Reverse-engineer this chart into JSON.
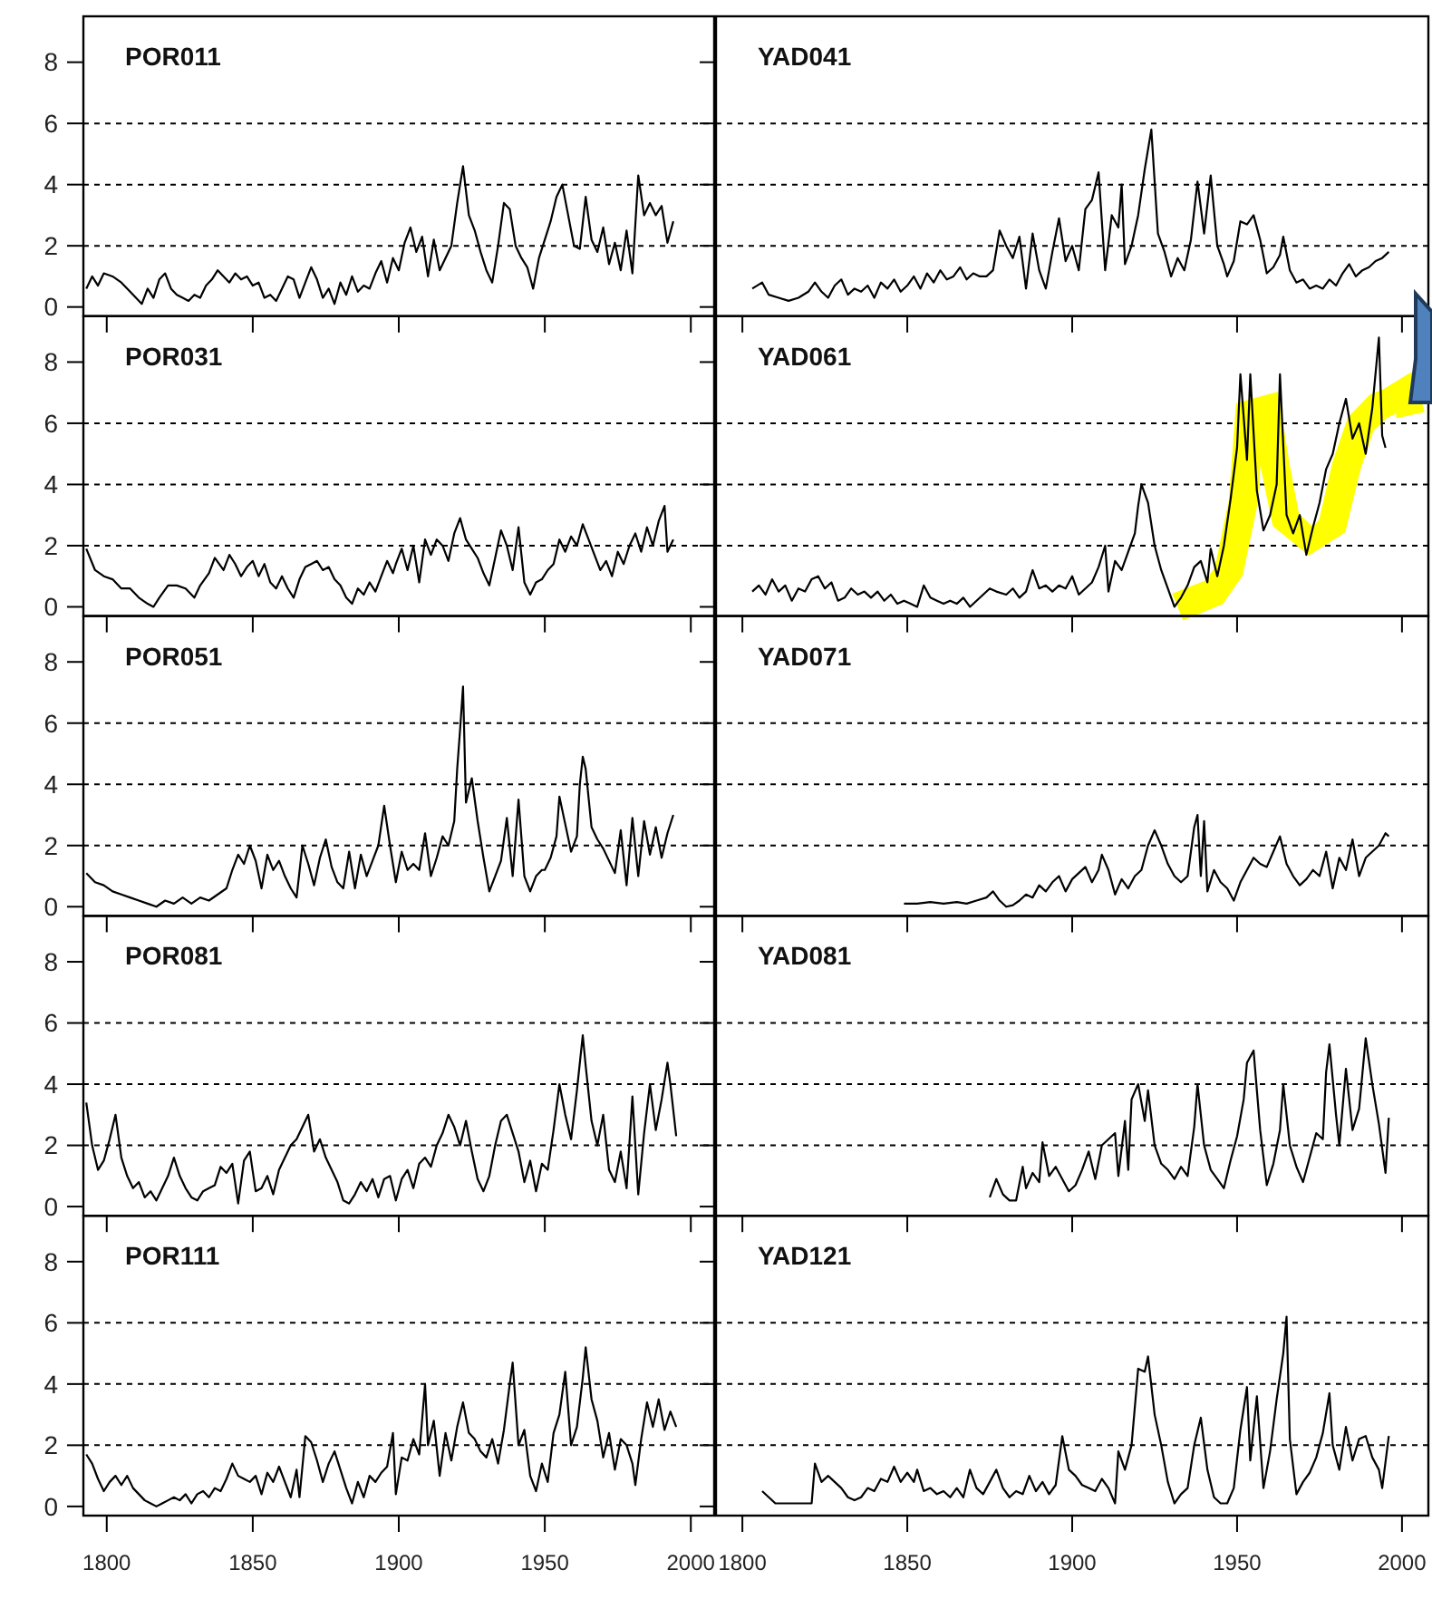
{
  "chart_data": [
    {
      "type": "line",
      "title": "POR011",
      "color": "#000000",
      "xlim": [
        1792,
        2008
      ],
      "xticks": [
        1800,
        1850,
        1900,
        1950,
        2000
      ],
      "ylim": [
        -0.3,
        9.5
      ],
      "yticks": [
        0,
        2,
        4,
        6,
        8
      ],
      "tick_labels": "y",
      "ref_lines": [
        {
          "axis": "y",
          "value": 2,
          "line_style": "dashed"
        },
        {
          "axis": "y",
          "value": 4,
          "line_style": "dashed"
        },
        {
          "axis": "y",
          "value": 6,
          "line_style": "dashed"
        }
      ],
      "x": [
        1793,
        1795,
        1797,
        1799,
        1802,
        1805,
        1808,
        1810,
        1812,
        1814,
        1816,
        1818,
        1820,
        1822,
        1824,
        1826,
        1828,
        1830,
        1832,
        1834,
        1836,
        1838,
        1840,
        1842,
        1844,
        1846,
        1848,
        1850,
        1852,
        1854,
        1856,
        1858,
        1860,
        1862,
        1864,
        1866,
        1868,
        1870,
        1872,
        1874,
        1876,
        1878,
        1880,
        1882,
        1884,
        1886,
        1888,
        1890,
        1892,
        1894,
        1896,
        1898,
        1900,
        1902,
        1904,
        1906,
        1908,
        1910,
        1912,
        1914,
        1916,
        1918,
        1920,
        1922,
        1924,
        1926,
        1928,
        1930,
        1932,
        1934,
        1936,
        1938,
        1940,
        1942,
        1944,
        1946,
        1948,
        1950,
        1952,
        1954,
        1956,
        1958,
        1960,
        1962,
        1964,
        1966,
        1968,
        1970,
        1972,
        1974,
        1976,
        1978,
        1980,
        1982,
        1984,
        1986,
        1988,
        1990,
        1992,
        1994
      ],
      "values": [
        0.6,
        1.0,
        0.7,
        1.1,
        1.0,
        0.8,
        0.5,
        0.3,
        0.1,
        0.6,
        0.3,
        0.9,
        1.1,
        0.6,
        0.4,
        0.3,
        0.2,
        0.4,
        0.3,
        0.7,
        0.9,
        1.2,
        1.0,
        0.8,
        1.1,
        0.9,
        1.0,
        0.7,
        0.8,
        0.3,
        0.4,
        0.2,
        0.6,
        1.0,
        0.9,
        0.3,
        0.8,
        1.3,
        0.9,
        0.3,
        0.6,
        0.1,
        0.8,
        0.4,
        1.0,
        0.5,
        0.7,
        0.6,
        1.1,
        1.5,
        0.8,
        1.6,
        1.2,
        2.1,
        2.6,
        1.8,
        2.3,
        1.0,
        2.2,
        1.2,
        1.6,
        2.0,
        3.4,
        4.6,
        3.0,
        2.5,
        1.8,
        1.2,
        0.8,
        2.0,
        3.4,
        3.2,
        2.0,
        1.6,
        1.3,
        0.6,
        1.6,
        2.2,
        2.8,
        3.6,
        4.0,
        3.0,
        2.0,
        1.9,
        3.6,
        2.2,
        1.8,
        2.6,
        1.4,
        2.1,
        1.2,
        2.5,
        1.1,
        4.3,
        3.0,
        3.4,
        3.0,
        3.3,
        2.1,
        2.8
      ]
    },
    {
      "type": "line",
      "title": "YAD041",
      "color": "#000000",
      "xlim": [
        1792,
        2008
      ],
      "xticks": [
        1800,
        1850,
        1900,
        1950,
        2000
      ],
      "ylim": [
        -0.3,
        9.5
      ],
      "yticks": [
        0,
        2,
        4,
        6,
        8
      ],
      "tick_labels": false,
      "ref_lines": [
        {
          "axis": "y",
          "value": 2,
          "line_style": "dashed"
        },
        {
          "axis": "y",
          "value": 4,
          "line_style": "dashed"
        },
        {
          "axis": "y",
          "value": 6,
          "line_style": "dashed"
        }
      ],
      "x": [
        1803,
        1806,
        1808,
        1811,
        1814,
        1817,
        1820,
        1822,
        1824,
        1826,
        1828,
        1830,
        1832,
        1834,
        1836,
        1838,
        1840,
        1842,
        1844,
        1846,
        1848,
        1850,
        1852,
        1854,
        1856,
        1858,
        1860,
        1862,
        1864,
        1866,
        1868,
        1870,
        1872,
        1874,
        1876,
        1878,
        1880,
        1882,
        1884,
        1886,
        1888,
        1890,
        1892,
        1894,
        1896,
        1898,
        1900,
        1902,
        1904,
        1906,
        1908,
        1910,
        1912,
        1914,
        1915,
        1916,
        1918,
        1920,
        1922,
        1924,
        1926,
        1928,
        1930,
        1932,
        1934,
        1936,
        1938,
        1940,
        1942,
        1944,
        1946,
        1947,
        1949,
        1951,
        1953,
        1955,
        1957,
        1959,
        1961,
        1963,
        1964,
        1966,
        1968,
        1970,
        1972,
        1974,
        1976,
        1978,
        1980,
        1982,
        1984,
        1986,
        1988,
        1990,
        1992,
        1994,
        1996
      ],
      "values": [
        0.6,
        0.8,
        0.4,
        0.3,
        0.2,
        0.3,
        0.5,
        0.8,
        0.5,
        0.3,
        0.7,
        0.9,
        0.4,
        0.6,
        0.5,
        0.7,
        0.3,
        0.8,
        0.6,
        0.9,
        0.5,
        0.7,
        1.0,
        0.6,
        1.1,
        0.8,
        1.2,
        0.9,
        1.0,
        1.3,
        0.9,
        1.1,
        1.0,
        1.0,
        1.2,
        2.5,
        2.0,
        1.6,
        2.3,
        0.6,
        2.4,
        1.2,
        0.6,
        1.8,
        2.9,
        1.5,
        2.0,
        1.2,
        3.2,
        3.5,
        4.4,
        1.2,
        3.0,
        2.6,
        4.0,
        1.4,
        2.0,
        3.0,
        4.5,
        5.8,
        2.4,
        1.8,
        1.0,
        1.6,
        1.2,
        2.2,
        4.1,
        2.4,
        4.3,
        2.0,
        1.4,
        1.0,
        1.5,
        2.8,
        2.7,
        3.0,
        2.2,
        1.1,
        1.3,
        1.7,
        2.3,
        1.2,
        0.8,
        0.9,
        0.6,
        0.7,
        0.6,
        0.9,
        0.7,
        1.1,
        1.4,
        1.0,
        1.2,
        1.3,
        1.5,
        1.6,
        1.8
      ]
    },
    {
      "type": "line",
      "title": "POR031",
      "color": "#000000",
      "xlim": [
        1792,
        2008
      ],
      "xticks": [
        1800,
        1850,
        1900,
        1950,
        2000
      ],
      "ylim": [
        -0.3,
        9.5
      ],
      "yticks": [
        0,
        2,
        4,
        6,
        8
      ],
      "tick_labels": "y",
      "ref_lines": [
        {
          "axis": "y",
          "value": 2,
          "line_style": "dashed"
        },
        {
          "axis": "y",
          "value": 4,
          "line_style": "dashed"
        },
        {
          "axis": "y",
          "value": 6,
          "line_style": "dashed"
        }
      ],
      "x": [
        1793,
        1796,
        1799,
        1802,
        1805,
        1808,
        1811,
        1814,
        1816,
        1818,
        1821,
        1824,
        1827,
        1830,
        1832,
        1835,
        1837,
        1840,
        1842,
        1844,
        1846,
        1848,
        1850,
        1852,
        1854,
        1856,
        1858,
        1860,
        1862,
        1864,
        1866,
        1868,
        1870,
        1872,
        1874,
        1876,
        1878,
        1880,
        1882,
        1884,
        1886,
        1888,
        1890,
        1892,
        1894,
        1896,
        1898,
        1899,
        1901,
        1903,
        1905,
        1907,
        1909,
        1911,
        1913,
        1915,
        1917,
        1919,
        1921,
        1923,
        1925,
        1927,
        1929,
        1931,
        1933,
        1935,
        1937,
        1939,
        1941,
        1943,
        1945,
        1947,
        1949,
        1951,
        1953,
        1955,
        1957,
        1959,
        1961,
        1963,
        1965,
        1967,
        1969,
        1971,
        1973,
        1975,
        1977,
        1979,
        1981,
        1983,
        1985,
        1987,
        1989,
        1991,
        1992,
        1994
      ],
      "values": [
        1.9,
        1.2,
        1.0,
        0.9,
        0.6,
        0.6,
        0.3,
        0.1,
        0.0,
        0.3,
        0.7,
        0.7,
        0.6,
        0.3,
        0.7,
        1.1,
        1.6,
        1.2,
        1.7,
        1.4,
        1.0,
        1.3,
        1.5,
        1.0,
        1.4,
        0.8,
        0.6,
        1.0,
        0.6,
        0.3,
        0.9,
        1.3,
        1.4,
        1.5,
        1.2,
        1.3,
        0.9,
        0.7,
        0.3,
        0.1,
        0.6,
        0.4,
        0.8,
        0.5,
        1.0,
        1.5,
        1.1,
        1.4,
        1.9,
        1.2,
        2.0,
        0.8,
        2.2,
        1.7,
        2.2,
        2.0,
        1.5,
        2.4,
        2.9,
        2.2,
        1.9,
        1.6,
        1.1,
        0.7,
        1.6,
        2.5,
        2.0,
        1.2,
        2.6,
        0.8,
        0.4,
        0.8,
        0.9,
        1.2,
        1.4,
        2.2,
        1.8,
        2.3,
        2.0,
        2.7,
        2.2,
        1.7,
        1.2,
        1.5,
        1.0,
        1.8,
        1.4,
        2.0,
        2.4,
        1.8,
        2.6,
        2.0,
        2.8,
        3.3,
        1.8,
        2.2
      ]
    },
    {
      "type": "line",
      "title": "YAD061",
      "color": "#000000",
      "xlim": [
        1792,
        2008
      ],
      "xticks": [
        1800,
        1850,
        1900,
        1950,
        2000
      ],
      "ylim": [
        -0.3,
        9.5
      ],
      "yticks": [
        0,
        2,
        4,
        6,
        8
      ],
      "tick_labels": false,
      "ref_lines": [
        {
          "axis": "y",
          "value": 2,
          "line_style": "dashed"
        },
        {
          "axis": "y",
          "value": 4,
          "line_style": "dashed"
        },
        {
          "axis": "y",
          "value": 6,
          "line_style": "dashed"
        }
      ],
      "x": [
        1803,
        1805,
        1807,
        1809,
        1811,
        1813,
        1815,
        1817,
        1819,
        1821,
        1823,
        1825,
        1827,
        1829,
        1831,
        1833,
        1835,
        1837,
        1839,
        1841,
        1843,
        1845,
        1847,
        1849,
        1851,
        1853,
        1855,
        1857,
        1859,
        1861,
        1863,
        1865,
        1867,
        1869,
        1871,
        1873,
        1875,
        1877,
        1880,
        1882,
        1884,
        1886,
        1888,
        1890,
        1892,
        1894,
        1896,
        1898,
        1900,
        1902,
        1904,
        1906,
        1908,
        1910,
        1911,
        1913,
        1915,
        1917,
        1919,
        1920,
        1921,
        1923,
        1925,
        1927,
        1929,
        1931,
        1933,
        1935,
        1937,
        1939,
        1941,
        1942,
        1944,
        1946,
        1948,
        1950,
        1951,
        1953,
        1954,
        1956,
        1958,
        1960,
        1962,
        1963,
        1965,
        1967,
        1969,
        1971,
        1973,
        1975,
        1977,
        1979,
        1981,
        1983,
        1985,
        1987,
        1989,
        1991,
        1993,
        1994,
        1995
      ],
      "values": [
        0.5,
        0.7,
        0.4,
        0.9,
        0.5,
        0.7,
        0.2,
        0.6,
        0.5,
        0.9,
        1.0,
        0.6,
        0.8,
        0.2,
        0.3,
        0.6,
        0.4,
        0.5,
        0.3,
        0.5,
        0.2,
        0.4,
        0.1,
        0.2,
        0.1,
        0.0,
        0.7,
        0.3,
        0.2,
        0.1,
        0.2,
        0.1,
        0.3,
        0.0,
        0.2,
        0.4,
        0.6,
        0.5,
        0.4,
        0.6,
        0.3,
        0.5,
        1.2,
        0.6,
        0.7,
        0.5,
        0.7,
        0.6,
        1.0,
        0.4,
        0.6,
        0.8,
        1.3,
        2.0,
        0.5,
        1.5,
        1.2,
        1.8,
        2.4,
        3.3,
        4.0,
        3.4,
        2.0,
        1.2,
        0.6,
        0.0,
        0.3,
        0.7,
        1.3,
        1.5,
        0.8,
        1.9,
        1.0,
        2.0,
        3.5,
        5.2,
        7.6,
        4.8,
        7.6,
        3.8,
        2.5,
        3.0,
        4.0,
        7.6,
        3.0,
        2.4,
        3.0,
        1.7,
        2.6,
        3.4,
        4.5,
        5.0,
        6.0,
        6.8,
        5.5,
        6.0,
        5.0,
        6.5,
        8.8,
        5.6,
        5.2
      ]
    },
    {
      "type": "line",
      "title": "POR051",
      "color": "#000000",
      "xlim": [
        1792,
        2008
      ],
      "xticks": [
        1800,
        1850,
        1900,
        1950,
        2000
      ],
      "ylim": [
        -0.3,
        9.5
      ],
      "yticks": [
        0,
        2,
        4,
        6,
        8
      ],
      "tick_labels": "y",
      "ref_lines": [
        {
          "axis": "y",
          "value": 2,
          "line_style": "dashed"
        },
        {
          "axis": "y",
          "value": 4,
          "line_style": "dashed"
        },
        {
          "axis": "y",
          "value": 6,
          "line_style": "dashed"
        }
      ],
      "x": [
        1793,
        1796,
        1799,
        1802,
        1805,
        1808,
        1811,
        1814,
        1817,
        1820,
        1823,
        1826,
        1829,
        1832,
        1835,
        1838,
        1841,
        1843,
        1845,
        1847,
        1849,
        1851,
        1853,
        1855,
        1857,
        1859,
        1861,
        1863,
        1865,
        1867,
        1869,
        1871,
        1873,
        1875,
        1877,
        1879,
        1881,
        1883,
        1885,
        1887,
        1889,
        1891,
        1893,
        1895,
        1897,
        1899,
        1901,
        1903,
        1905,
        1907,
        1909,
        1911,
        1913,
        1915,
        1917,
        1919,
        1920,
        1921,
        1922,
        1923,
        1925,
        1927,
        1929,
        1931,
        1933,
        1935,
        1937,
        1939,
        1941,
        1943,
        1945,
        1947,
        1949,
        1950,
        1952,
        1954,
        1955,
        1957,
        1959,
        1961,
        1962,
        1963,
        1964,
        1966,
        1968,
        1970,
        1972,
        1974,
        1976,
        1978,
        1980,
        1982,
        1984,
        1986,
        1988,
        1990,
        1992,
        1994
      ],
      "values": [
        1.1,
        0.8,
        0.7,
        0.5,
        0.4,
        0.3,
        0.2,
        0.1,
        0.0,
        0.2,
        0.1,
        0.3,
        0.1,
        0.3,
        0.2,
        0.4,
        0.6,
        1.2,
        1.7,
        1.4,
        2.0,
        1.5,
        0.6,
        1.7,
        1.2,
        1.5,
        1.0,
        0.6,
        0.3,
        2.0,
        1.4,
        0.7,
        1.6,
        2.2,
        1.3,
        0.8,
        0.6,
        1.8,
        0.6,
        1.7,
        1.0,
        1.5,
        2.0,
        3.3,
        2.0,
        0.8,
        1.8,
        1.2,
        1.4,
        1.2,
        2.4,
        1.0,
        1.6,
        2.3,
        2.0,
        2.8,
        4.5,
        5.8,
        7.2,
        3.4,
        4.2,
        2.8,
        1.6,
        0.5,
        1.0,
        1.5,
        2.9,
        1.0,
        3.5,
        1.0,
        0.5,
        1.0,
        1.2,
        1.2,
        1.6,
        2.3,
        3.6,
        2.7,
        1.8,
        2.3,
        4.0,
        4.9,
        4.5,
        2.6,
        2.2,
        1.9,
        1.5,
        1.1,
        2.5,
        0.7,
        2.9,
        1.0,
        2.8,
        1.7,
        2.6,
        1.6,
        2.4,
        3.0
      ]
    },
    {
      "type": "line",
      "title": "YAD071",
      "color": "#000000",
      "xlim": [
        1792,
        2008
      ],
      "xticks": [
        1800,
        1850,
        1900,
        1950,
        2000
      ],
      "ylim": [
        -0.3,
        9.5
      ],
      "yticks": [
        0,
        2,
        4,
        6,
        8
      ],
      "tick_labels": false,
      "ref_lines": [
        {
          "axis": "y",
          "value": 2,
          "line_style": "dashed"
        },
        {
          "axis": "y",
          "value": 4,
          "line_style": "dashed"
        },
        {
          "axis": "y",
          "value": 6,
          "line_style": "dashed"
        }
      ],
      "x": [
        1849,
        1853,
        1857,
        1861,
        1865,
        1868,
        1871,
        1874,
        1876,
        1878,
        1880,
        1882,
        1884,
        1886,
        1888,
        1890,
        1892,
        1894,
        1896,
        1898,
        1900,
        1902,
        1904,
        1906,
        1908,
        1909,
        1911,
        1913,
        1915,
        1917,
        1919,
        1921,
        1923,
        1925,
        1927,
        1929,
        1931,
        1933,
        1935,
        1937,
        1938,
        1939,
        1940,
        1941,
        1943,
        1945,
        1947,
        1949,
        1951,
        1953,
        1955,
        1957,
        1959,
        1961,
        1963,
        1965,
        1967,
        1969,
        1971,
        1973,
        1975,
        1977,
        1979,
        1981,
        1983,
        1985,
        1987,
        1989,
        1991,
        1993,
        1995,
        1996
      ],
      "values": [
        0.1,
        0.1,
        0.15,
        0.1,
        0.15,
        0.1,
        0.2,
        0.3,
        0.5,
        0.2,
        0.0,
        0.05,
        0.2,
        0.4,
        0.3,
        0.7,
        0.5,
        0.8,
        1.0,
        0.5,
        0.9,
        1.1,
        1.3,
        0.8,
        1.2,
        1.7,
        1.2,
        0.4,
        0.9,
        0.6,
        1.0,
        1.2,
        2.0,
        2.5,
        2.0,
        1.4,
        1.0,
        0.8,
        1.0,
        2.6,
        3.0,
        1.0,
        2.8,
        0.5,
        1.2,
        0.8,
        0.6,
        0.2,
        0.8,
        1.2,
        1.6,
        1.4,
        1.3,
        1.8,
        2.3,
        1.4,
        1.0,
        0.7,
        0.9,
        1.2,
        1.0,
        1.8,
        0.6,
        1.6,
        1.2,
        2.2,
        1.0,
        1.6,
        1.8,
        2.0,
        2.4,
        2.3
      ]
    },
    {
      "type": "line",
      "title": "POR081",
      "color": "#000000",
      "xlim": [
        1792,
        2008
      ],
      "xticks": [
        1800,
        1850,
        1900,
        1950,
        2000
      ],
      "ylim": [
        -0.3,
        9.5
      ],
      "yticks": [
        0,
        2,
        4,
        6,
        8
      ],
      "tick_labels": "y",
      "ref_lines": [
        {
          "axis": "y",
          "value": 2,
          "line_style": "dashed"
        },
        {
          "axis": "y",
          "value": 4,
          "line_style": "dashed"
        },
        {
          "axis": "y",
          "value": 6,
          "line_style": "dashed"
        }
      ],
      "x": [
        1793,
        1795,
        1797,
        1799,
        1801,
        1803,
        1805,
        1807,
        1809,
        1811,
        1813,
        1815,
        1817,
        1819,
        1821,
        1823,
        1825,
        1827,
        1829,
        1831,
        1833,
        1835,
        1837,
        1839,
        1841,
        1843,
        1845,
        1847,
        1849,
        1851,
        1853,
        1855,
        1857,
        1859,
        1861,
        1863,
        1865,
        1867,
        1869,
        1871,
        1873,
        1875,
        1877,
        1879,
        1881,
        1883,
        1885,
        1887,
        1889,
        1891,
        1893,
        1895,
        1897,
        1899,
        1901,
        1903,
        1905,
        1907,
        1909,
        1911,
        1913,
        1915,
        1917,
        1919,
        1921,
        1923,
        1925,
        1927,
        1929,
        1931,
        1933,
        1935,
        1937,
        1939,
        1941,
        1943,
        1945,
        1947,
        1949,
        1951,
        1953,
        1955,
        1957,
        1959,
        1961,
        1963,
        1964,
        1966,
        1968,
        1970,
        1972,
        1974,
        1976,
        1978,
        1980,
        1982,
        1984,
        1986,
        1988,
        1990,
        1992,
        1993,
        1995
      ],
      "values": [
        3.4,
        2.0,
        1.2,
        1.5,
        2.2,
        3.0,
        1.6,
        1.0,
        0.6,
        0.8,
        0.3,
        0.5,
        0.2,
        0.6,
        1.0,
        1.6,
        1.0,
        0.6,
        0.3,
        0.2,
        0.5,
        0.6,
        0.7,
        1.3,
        1.1,
        1.4,
        0.1,
        1.5,
        1.8,
        0.5,
        0.6,
        1.0,
        0.4,
        1.2,
        1.6,
        2.0,
        2.2,
        2.6,
        3.0,
        1.8,
        2.2,
        1.6,
        1.2,
        0.8,
        0.2,
        0.1,
        0.4,
        0.8,
        0.5,
        0.9,
        0.3,
        0.9,
        1.0,
        0.2,
        0.9,
        1.2,
        0.6,
        1.4,
        1.6,
        1.3,
        2.0,
        2.4,
        3.0,
        2.6,
        2.0,
        2.8,
        1.8,
        0.9,
        0.5,
        1.0,
        2.0,
        2.8,
        3.0,
        2.4,
        1.8,
        0.8,
        1.5,
        0.5,
        1.4,
        1.2,
        2.5,
        4.0,
        3.0,
        2.2,
        3.8,
        5.6,
        4.6,
        2.8,
        2.0,
        3.0,
        1.2,
        0.8,
        1.8,
        0.6,
        3.6,
        0.4,
        2.4,
        4.0,
        2.5,
        3.5,
        4.7,
        4.0,
        2.3
      ]
    },
    {
      "type": "line",
      "title": "YAD081",
      "color": "#000000",
      "xlim": [
        1792,
        2008
      ],
      "xticks": [
        1800,
        1850,
        1900,
        1950,
        2000
      ],
      "ylim": [
        -0.3,
        9.5
      ],
      "yticks": [
        0,
        2,
        4,
        6,
        8
      ],
      "tick_labels": false,
      "ref_lines": [
        {
          "axis": "y",
          "value": 2,
          "line_style": "dashed"
        },
        {
          "axis": "y",
          "value": 4,
          "line_style": "dashed"
        },
        {
          "axis": "y",
          "value": 6,
          "line_style": "dashed"
        }
      ],
      "x": [
        1875,
        1877,
        1879,
        1881,
        1883,
        1885,
        1886,
        1888,
        1890,
        1891,
        1893,
        1895,
        1897,
        1899,
        1901,
        1903,
        1904,
        1905,
        1907,
        1909,
        1911,
        1913,
        1914,
        1916,
        1917,
        1918,
        1920,
        1922,
        1923,
        1925,
        1927,
        1929,
        1931,
        1933,
        1935,
        1937,
        1938,
        1940,
        1942,
        1944,
        1946,
        1948,
        1950,
        1952,
        1953,
        1955,
        1957,
        1959,
        1961,
        1963,
        1964,
        1966,
        1968,
        1970,
        1972,
        1974,
        1976,
        1977,
        1978,
        1980,
        1981,
        1983,
        1985,
        1987,
        1989,
        1991,
        1993,
        1995,
        1996
      ],
      "values": [
        0.3,
        0.9,
        0.4,
        0.2,
        0.2,
        1.3,
        0.6,
        1.1,
        0.8,
        2.1,
        1.0,
        1.3,
        0.9,
        0.5,
        0.7,
        1.2,
        1.5,
        1.8,
        0.9,
        2.0,
        2.2,
        2.4,
        1.0,
        2.8,
        1.2,
        3.5,
        4.0,
        2.8,
        3.8,
        2.0,
        1.4,
        1.2,
        0.9,
        1.3,
        1.0,
        2.6,
        4.0,
        2.0,
        1.2,
        0.9,
        0.6,
        1.5,
        2.3,
        3.5,
        4.7,
        5.1,
        2.5,
        0.7,
        1.4,
        2.5,
        4.0,
        2.0,
        1.3,
        0.8,
        1.6,
        2.4,
        2.2,
        4.4,
        5.3,
        3.0,
        2.0,
        4.5,
        2.5,
        3.2,
        5.5,
        4.0,
        2.7,
        1.1,
        2.9
      ]
    },
    {
      "type": "line",
      "title": "POR111",
      "color": "#000000",
      "xlim": [
        1792,
        2008
      ],
      "xticks": [
        1800,
        1850,
        1900,
        1950,
        2000
      ],
      "ylim": [
        -0.3,
        9.5
      ],
      "yticks": [
        0,
        2,
        4,
        6,
        8
      ],
      "ref_lines": [
        {
          "axis": "y",
          "value": 2,
          "line_style": "dashed"
        },
        {
          "axis": "y",
          "value": 4,
          "line_style": "dashed"
        },
        {
          "axis": "y",
          "value": 6,
          "line_style": "dashed"
        }
      ],
      "x": [
        1793,
        1795,
        1797,
        1799,
        1801,
        1803,
        1805,
        1807,
        1809,
        1811,
        1813,
        1815,
        1817,
        1819,
        1821,
        1823,
        1825,
        1827,
        1829,
        1831,
        1833,
        1835,
        1837,
        1839,
        1841,
        1843,
        1845,
        1847,
        1849,
        1851,
        1853,
        1855,
        1857,
        1859,
        1861,
        1863,
        1865,
        1866,
        1868,
        1870,
        1872,
        1874,
        1876,
        1878,
        1880,
        1882,
        1884,
        1886,
        1888,
        1890,
        1892,
        1894,
        1896,
        1898,
        1899,
        1901,
        1903,
        1905,
        1907,
        1909,
        1910,
        1912,
        1914,
        1916,
        1918,
        1920,
        1922,
        1924,
        1926,
        1928,
        1930,
        1932,
        1934,
        1936,
        1938,
        1939,
        1941,
        1943,
        1945,
        1947,
        1949,
        1951,
        1953,
        1955,
        1957,
        1959,
        1961,
        1963,
        1964,
        1966,
        1968,
        1970,
        1972,
        1974,
        1976,
        1978,
        1980,
        1981,
        1983,
        1985,
        1987,
        1989,
        1991,
        1993,
        1995
      ],
      "values": [
        1.7,
        1.4,
        0.9,
        0.5,
        0.8,
        1.0,
        0.7,
        1.0,
        0.6,
        0.4,
        0.2,
        0.1,
        0.0,
        0.1,
        0.2,
        0.3,
        0.2,
        0.4,
        0.1,
        0.4,
        0.5,
        0.3,
        0.6,
        0.5,
        0.9,
        1.4,
        1.0,
        0.9,
        0.8,
        1.0,
        0.4,
        1.1,
        0.8,
        1.3,
        0.8,
        0.3,
        1.2,
        0.3,
        2.3,
        2.1,
        1.5,
        0.8,
        1.4,
        1.8,
        1.2,
        0.6,
        0.1,
        0.8,
        0.3,
        1.0,
        0.8,
        1.1,
        1.3,
        2.4,
        0.4,
        1.6,
        1.5,
        2.2,
        1.7,
        4.0,
        2.0,
        2.8,
        1.0,
        2.4,
        1.5,
        2.6,
        3.4,
        2.4,
        2.2,
        1.8,
        1.6,
        2.2,
        1.4,
        2.5,
        4.0,
        4.7,
        2.0,
        2.5,
        1.0,
        0.5,
        1.4,
        0.8,
        2.4,
        3.0,
        4.4,
        2.0,
        2.6,
        4.2,
        5.2,
        3.5,
        2.8,
        1.6,
        2.4,
        1.2,
        2.2,
        2.0,
        1.4,
        0.7,
        2.2,
        3.4,
        2.6,
        3.5,
        2.5,
        3.1,
        2.6
      ]
    },
    {
      "type": "line",
      "title": "YAD121",
      "color": "#000000",
      "xlim": [
        1792,
        2008
      ],
      "xticks": [
        1800,
        1850,
        1900,
        1950,
        2000
      ],
      "ylim": [
        -0.3,
        9.5
      ],
      "yticks": [
        0,
        2,
        4,
        6,
        8
      ],
      "tick_labels": "x",
      "ref_lines": [
        {
          "axis": "y",
          "value": 2,
          "line_style": "dashed"
        },
        {
          "axis": "y",
          "value": 4,
          "line_style": "dashed"
        },
        {
          "axis": "y",
          "value": 6,
          "line_style": "dashed"
        }
      ],
      "x": [
        1806,
        1808,
        1810,
        1814,
        1818,
        1821,
        1822,
        1824,
        1826,
        1828,
        1830,
        1832,
        1834,
        1836,
        1838,
        1840,
        1842,
        1844,
        1846,
        1848,
        1850,
        1852,
        1853,
        1855,
        1857,
        1859,
        1861,
        1863,
        1865,
        1867,
        1869,
        1871,
        1873,
        1875,
        1877,
        1879,
        1881,
        1883,
        1885,
        1887,
        1889,
        1891,
        1893,
        1895,
        1897,
        1899,
        1901,
        1903,
        1905,
        1907,
        1909,
        1911,
        1913,
        1914,
        1916,
        1918,
        1920,
        1922,
        1923,
        1925,
        1927,
        1929,
        1931,
        1933,
        1935,
        1937,
        1939,
        1941,
        1943,
        1945,
        1947,
        1949,
        1951,
        1953,
        1954,
        1956,
        1958,
        1960,
        1962,
        1964,
        1965,
        1966,
        1968,
        1970,
        1972,
        1974,
        1976,
        1978,
        1979,
        1981,
        1983,
        1985,
        1987,
        1989,
        1991,
        1993,
        1994,
        1996
      ],
      "values": [
        0.5,
        0.3,
        0.1,
        0.1,
        0.1,
        0.1,
        1.4,
        0.8,
        1.0,
        0.8,
        0.6,
        0.3,
        0.2,
        0.3,
        0.6,
        0.5,
        0.9,
        0.8,
        1.3,
        0.8,
        1.1,
        0.8,
        1.2,
        0.5,
        0.6,
        0.4,
        0.5,
        0.3,
        0.6,
        0.3,
        1.2,
        0.6,
        0.4,
        0.8,
        1.2,
        0.6,
        0.3,
        0.5,
        0.4,
        1.0,
        0.5,
        0.8,
        0.4,
        0.7,
        2.3,
        1.2,
        1.0,
        0.7,
        0.6,
        0.5,
        0.9,
        0.6,
        0.1,
        1.8,
        1.2,
        2.0,
        4.5,
        4.4,
        4.9,
        3.0,
        2.0,
        0.8,
        0.1,
        0.4,
        0.6,
        2.0,
        2.9,
        1.2,
        0.3,
        0.1,
        0.1,
        0.6,
        2.5,
        3.9,
        1.5,
        3.6,
        0.6,
        1.8,
        3.5,
        5.0,
        6.2,
        2.2,
        0.4,
        0.8,
        1.1,
        1.6,
        2.4,
        3.7,
        2.0,
        1.2,
        2.6,
        1.5,
        2.2,
        2.3,
        1.6,
        1.2,
        0.6,
        2.3
      ]
    }
  ]
}
